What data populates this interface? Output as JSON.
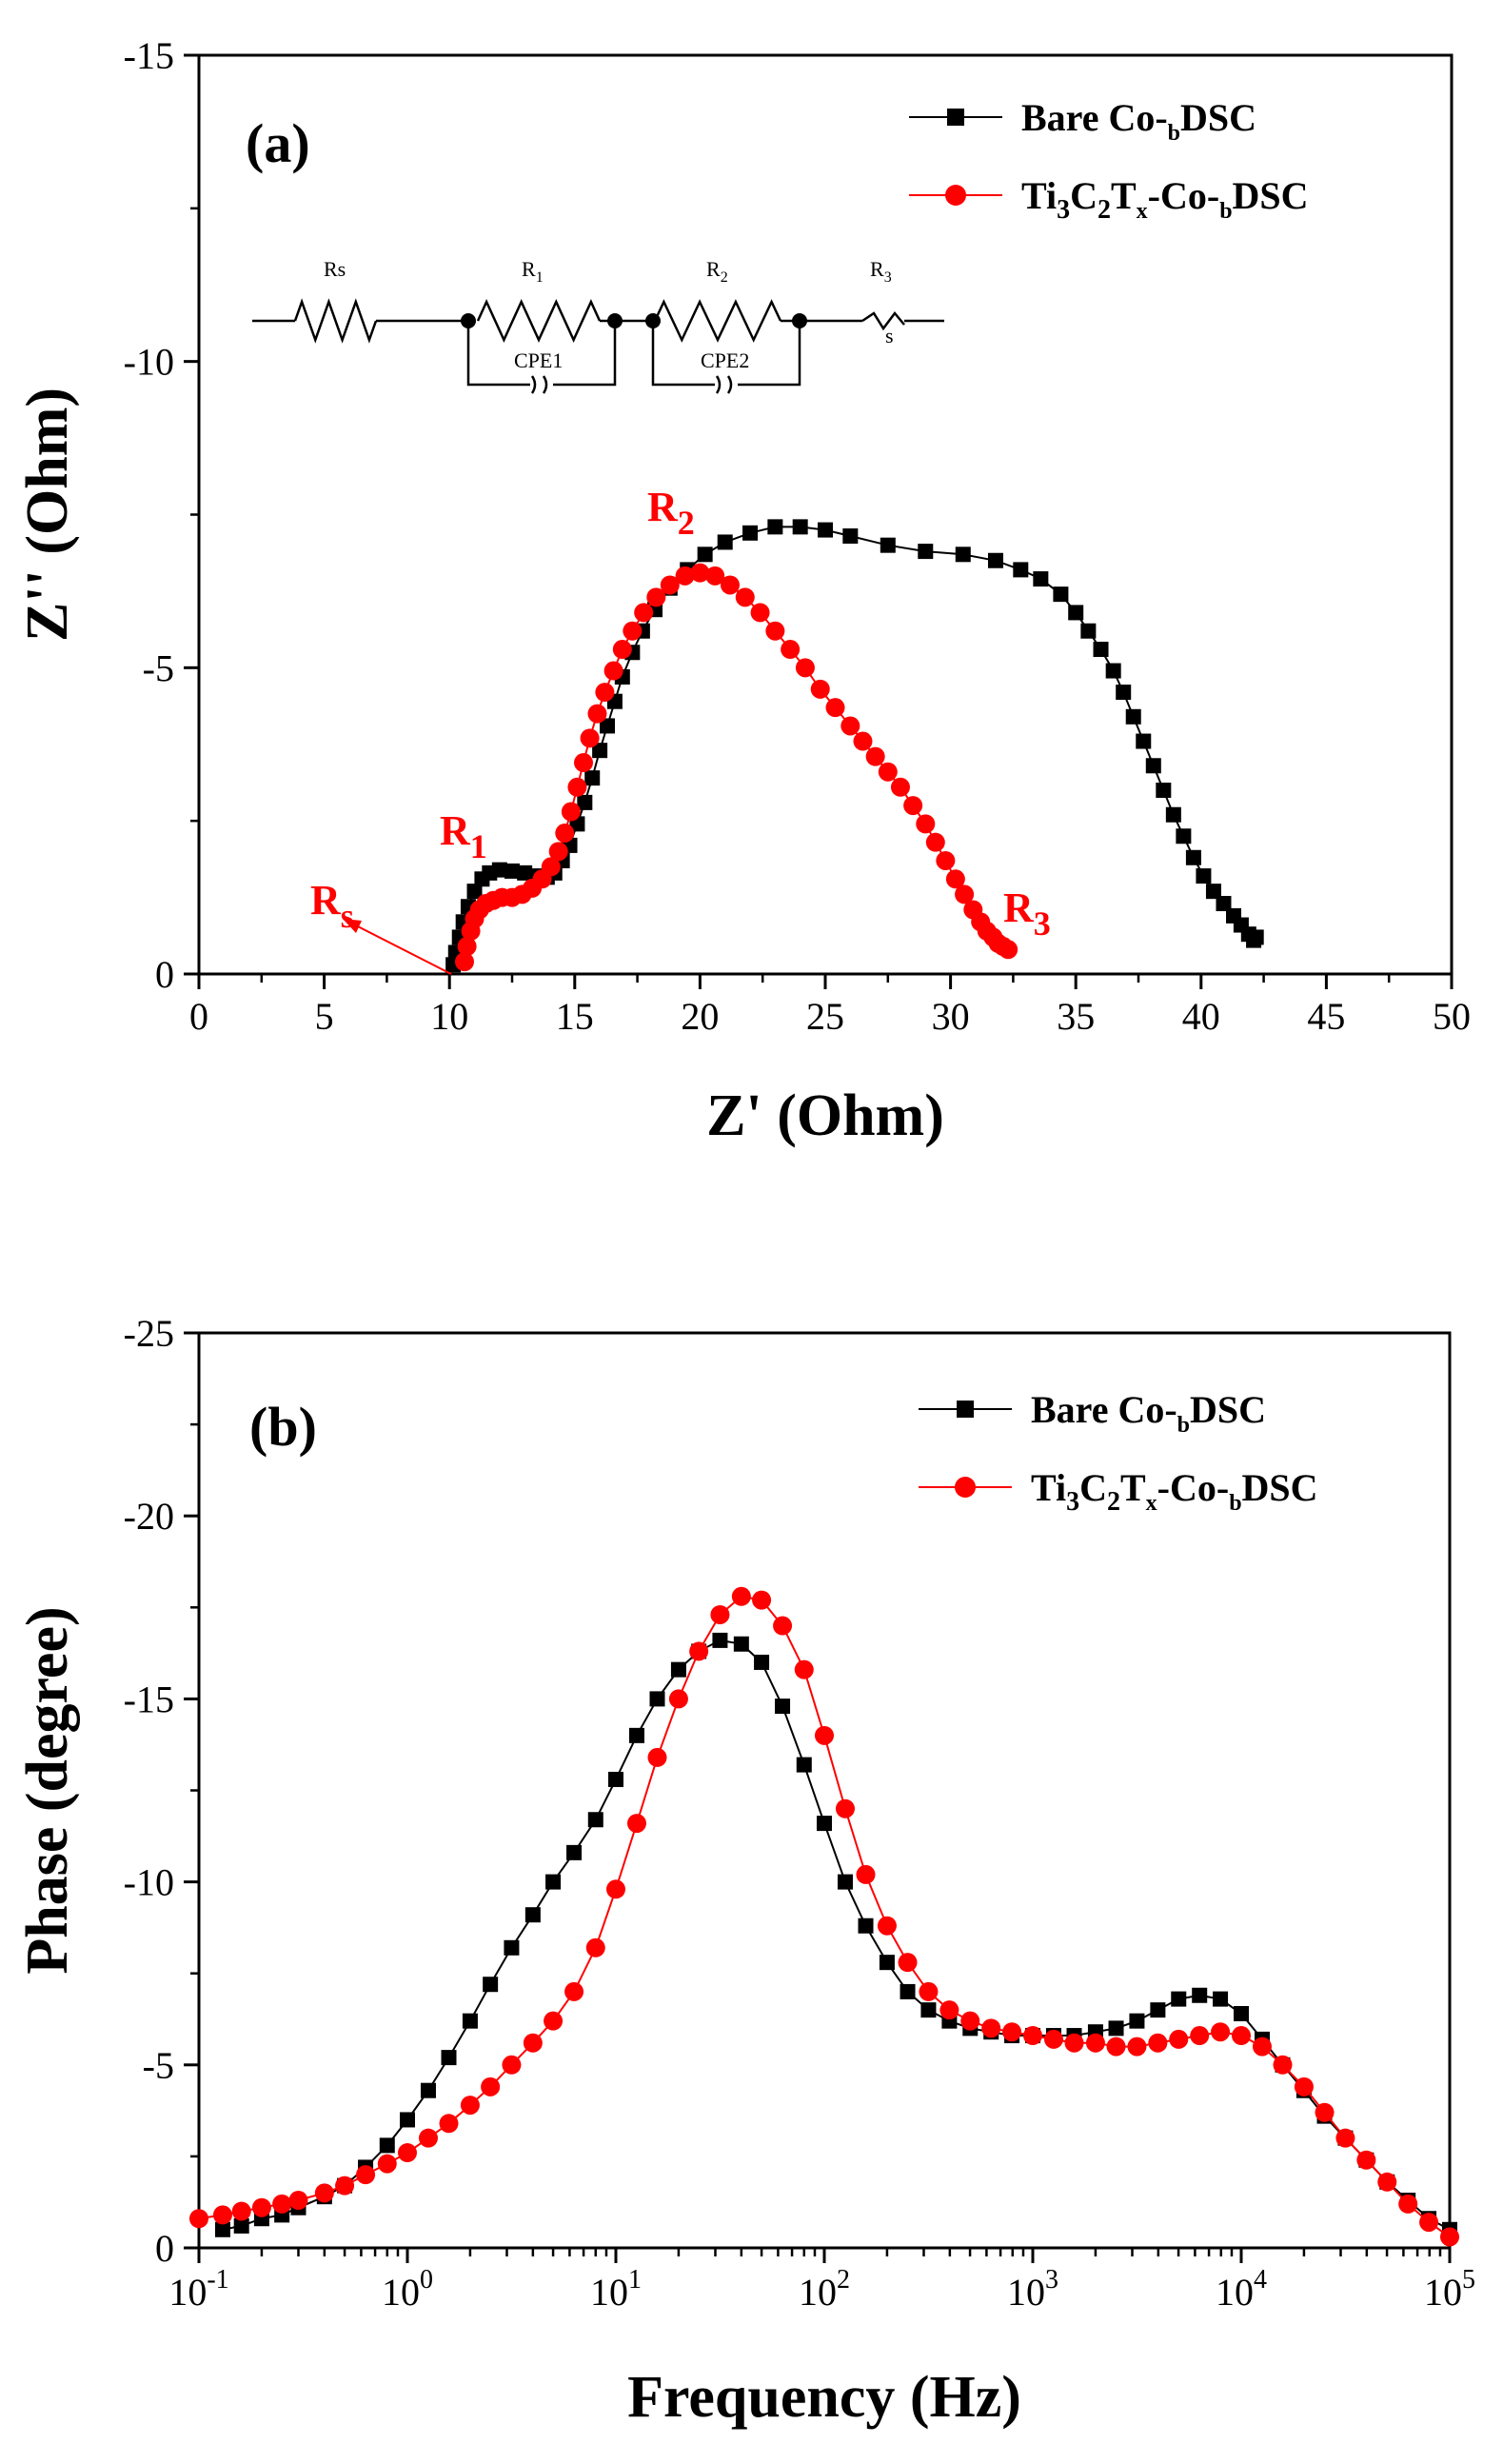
{
  "colors": {
    "bare": "#000000",
    "ti": "#ff0000",
    "axis": "#000000"
  },
  "chart_data": [
    {
      "type": "scatter",
      "panel_label": "(a)",
      "xlabel": "Z' (Ohm)",
      "ylabel": "Z'' (Ohm)",
      "xlim": [
        0,
        50
      ],
      "ylim": [
        0,
        -15
      ],
      "xticks": [
        0,
        5,
        10,
        15,
        20,
        25,
        30,
        35,
        40,
        45,
        50
      ],
      "xtick_labels": [
        "0",
        "5",
        "10",
        "15",
        "20",
        "25",
        "30",
        "35",
        "40",
        "45",
        "50"
      ],
      "yticks": [
        0,
        -5,
        -10,
        -15
      ],
      "ytick_labels": [
        "0",
        "-5",
        "-10",
        "-15"
      ],
      "legend_position": "top-right",
      "legend": [
        {
          "main": "Bare Co-",
          "sub": "b",
          "tail": "DSC"
        },
        {
          "main": "Ti",
          "s1": "3",
          "m2": "C",
          "s2": "2",
          "m3": "T",
          "s3": "x",
          "m4": "-Co-",
          "s4": "b",
          "tail": "DSC"
        }
      ],
      "annotations": [
        {
          "main": "R",
          "sub": "1",
          "x": 11.2,
          "y": -2.0
        },
        {
          "main": "R",
          "sub": "2",
          "x": 19.0,
          "y": -7.5
        },
        {
          "main": "R",
          "sub": "3",
          "x": 32.6,
          "y": -1.05
        },
        {
          "main": "R",
          "sub": "s",
          "x": 4.6,
          "y": -1.05
        }
      ],
      "circuit": {
        "labels": [
          "Rs",
          "R1",
          "R2",
          "R3",
          "CPE1",
          "CPE2",
          "s"
        ]
      },
      "series": [
        {
          "name": "Bare Co-bDSC",
          "x": [
            10.15,
            10.25,
            10.4,
            10.55,
            10.75,
            11.0,
            11.3,
            11.6,
            12.0,
            12.5,
            13.0,
            13.5,
            13.9,
            14.2,
            14.5,
            14.8,
            15.1,
            15.4,
            15.7,
            16.0,
            16.3,
            16.6,
            16.9,
            17.3,
            17.7,
            18.2,
            18.8,
            19.5,
            20.2,
            21.0,
            22.0,
            23.0,
            24.0,
            25.0,
            26.0,
            27.5,
            29.0,
            30.5,
            31.8,
            32.8,
            33.6,
            34.4,
            35.0,
            35.5,
            36.0,
            36.5,
            36.9,
            37.3,
            37.7,
            38.1,
            38.5,
            38.9,
            39.3,
            39.7,
            40.1,
            40.5,
            40.9,
            41.3,
            41.6,
            41.9,
            42.1,
            42.2
          ],
          "y": [
            -0.15,
            -0.35,
            -0.6,
            -0.85,
            -1.1,
            -1.35,
            -1.55,
            -1.65,
            -1.7,
            -1.68,
            -1.65,
            -1.6,
            -1.58,
            -1.65,
            -1.85,
            -2.1,
            -2.45,
            -2.8,
            -3.2,
            -3.65,
            -4.05,
            -4.45,
            -4.85,
            -5.25,
            -5.6,
            -5.95,
            -6.3,
            -6.6,
            -6.85,
            -7.05,
            -7.2,
            -7.3,
            -7.3,
            -7.25,
            -7.15,
            -7.0,
            -6.9,
            -6.85,
            -6.75,
            -6.6,
            -6.45,
            -6.2,
            -5.9,
            -5.6,
            -5.3,
            -4.95,
            -4.6,
            -4.2,
            -3.8,
            -3.4,
            -3.0,
            -2.6,
            -2.25,
            -1.9,
            -1.6,
            -1.35,
            -1.15,
            -0.95,
            -0.8,
            -0.65,
            -0.55,
            -0.6
          ]
        },
        {
          "name": "Ti3C2Tx-Co-bDSC",
          "x": [
            10.6,
            10.7,
            10.85,
            11.0,
            11.2,
            11.45,
            11.75,
            12.1,
            12.5,
            12.9,
            13.3,
            13.7,
            14.05,
            14.35,
            14.6,
            14.85,
            15.1,
            15.35,
            15.6,
            15.9,
            16.2,
            16.55,
            16.9,
            17.3,
            17.75,
            18.25,
            18.8,
            19.4,
            20.0,
            20.6,
            21.2,
            21.8,
            22.4,
            23.0,
            23.6,
            24.2,
            24.8,
            25.4,
            26.0,
            26.5,
            27.0,
            27.5,
            28.0,
            28.5,
            29.0,
            29.4,
            29.8,
            30.2,
            30.55,
            30.9,
            31.2,
            31.45,
            31.7,
            31.9,
            32.1,
            32.3
          ],
          "y": [
            -0.2,
            -0.45,
            -0.7,
            -0.9,
            -1.05,
            -1.15,
            -1.2,
            -1.25,
            -1.25,
            -1.3,
            -1.4,
            -1.55,
            -1.75,
            -2.0,
            -2.3,
            -2.65,
            -3.05,
            -3.45,
            -3.85,
            -4.25,
            -4.6,
            -4.95,
            -5.3,
            -5.6,
            -5.9,
            -6.15,
            -6.35,
            -6.5,
            -6.55,
            -6.5,
            -6.35,
            -6.15,
            -5.9,
            -5.6,
            -5.3,
            -5.0,
            -4.65,
            -4.35,
            -4.05,
            -3.8,
            -3.55,
            -3.3,
            -3.05,
            -2.75,
            -2.45,
            -2.15,
            -1.85,
            -1.55,
            -1.3,
            -1.05,
            -0.85,
            -0.7,
            -0.6,
            -0.5,
            -0.45,
            -0.4
          ]
        }
      ]
    },
    {
      "type": "scatter",
      "panel_label": "(b)",
      "xlabel": "Frequency (Hz)",
      "ylabel": "Phase (degree)",
      "xscale": "log",
      "xlim": [
        0.1,
        100000
      ],
      "ylim": [
        0,
        -25
      ],
      "xtick_labels": [
        {
          "base": "10",
          "exp": "-1"
        },
        {
          "base": "10",
          "exp": "0"
        },
        {
          "base": "10",
          "exp": "1"
        },
        {
          "base": "10",
          "exp": "2"
        },
        {
          "base": "10",
          "exp": "3"
        },
        {
          "base": "10",
          "exp": "4"
        },
        {
          "base": "10",
          "exp": "5"
        }
      ],
      "yticks": [
        0,
        -5,
        -10,
        -15,
        -20,
        -25
      ],
      "ytick_labels": [
        "0",
        "-5",
        "-10",
        "-15",
        "-20",
        "-25"
      ],
      "legend_position": "top-right",
      "legend": [
        {
          "main": "Bare Co-",
          "sub": "b",
          "tail": "DSC"
        },
        {
          "main": "Ti",
          "s1": "3",
          "m2": "C",
          "s2": "2",
          "m3": "T",
          "s3": "x",
          "m4": "-Co-",
          "s4": "b",
          "tail": "DSC"
        }
      ],
      "series": [
        {
          "name": "Bare Co-bDSC",
          "x": [
            0.13,
            0.16,
            0.2,
            0.25,
            0.3,
            0.4,
            0.5,
            0.63,
            0.8,
            1.0,
            1.26,
            1.58,
            2.0,
            2.5,
            3.16,
            4.0,
            5.0,
            6.3,
            8.0,
            10,
            12.6,
            15.8,
            20,
            25,
            31.6,
            40,
            50,
            63,
            80,
            100,
            126,
            158,
            200,
            251,
            316,
            398,
            501,
            631,
            794,
            1000,
            1260,
            1580,
            2000,
            2510,
            3160,
            3980,
            5010,
            6310,
            7940,
            10000,
            12600,
            15800,
            20000,
            25100,
            31600,
            39800,
            50100,
            63100,
            79400,
            100000
          ],
          "y": [
            -0.5,
            -0.6,
            -0.8,
            -0.9,
            -1.1,
            -1.4,
            -1.7,
            -2.2,
            -2.8,
            -3.5,
            -4.3,
            -5.2,
            -6.2,
            -7.2,
            -8.2,
            -9.1,
            -10.0,
            -10.8,
            -11.7,
            -12.8,
            -14.0,
            -15.0,
            -15.8,
            -16.3,
            -16.6,
            -16.5,
            -16.0,
            -14.8,
            -13.2,
            -11.6,
            -10.0,
            -8.8,
            -7.8,
            -7.0,
            -6.5,
            -6.2,
            -6.0,
            -5.9,
            -5.8,
            -5.8,
            -5.8,
            -5.8,
            -5.9,
            -6.0,
            -6.2,
            -6.5,
            -6.8,
            -6.9,
            -6.8,
            -6.4,
            -5.7,
            -5.0,
            -4.3,
            -3.6,
            -3.0,
            -2.4,
            -1.8,
            -1.3,
            -0.8,
            -0.5
          ]
        },
        {
          "name": "Ti3C2Tx-Co-bDSC",
          "x": [
            0.1,
            0.13,
            0.16,
            0.2,
            0.25,
            0.3,
            0.4,
            0.5,
            0.63,
            0.8,
            1.0,
            1.26,
            1.58,
            2.0,
            2.5,
            3.16,
            4.0,
            5.0,
            6.3,
            8.0,
            10,
            12.6,
            15.8,
            20,
            25,
            31.6,
            40,
            50,
            63,
            80,
            100,
            126,
            158,
            200,
            251,
            316,
            398,
            501,
            631,
            794,
            1000,
            1260,
            1580,
            2000,
            2510,
            3160,
            3980,
            5010,
            6310,
            7940,
            10000,
            12600,
            15800,
            20000,
            25100,
            31600,
            39800,
            50100,
            63100,
            79400,
            100000
          ],
          "y": [
            -0.8,
            -0.9,
            -1.0,
            -1.1,
            -1.2,
            -1.3,
            -1.5,
            -1.7,
            -2.0,
            -2.3,
            -2.6,
            -3.0,
            -3.4,
            -3.9,
            -4.4,
            -5.0,
            -5.6,
            -6.2,
            -7.0,
            -8.2,
            -9.8,
            -11.6,
            -13.4,
            -15.0,
            -16.3,
            -17.3,
            -17.8,
            -17.7,
            -17.0,
            -15.8,
            -14.0,
            -12.0,
            -10.2,
            -8.8,
            -7.8,
            -7.0,
            -6.5,
            -6.2,
            -6.0,
            -5.9,
            -5.8,
            -5.7,
            -5.6,
            -5.6,
            -5.5,
            -5.5,
            -5.6,
            -5.7,
            -5.8,
            -5.9,
            -5.8,
            -5.5,
            -5.0,
            -4.4,
            -3.7,
            -3.0,
            -2.4,
            -1.8,
            -1.2,
            -0.7,
            -0.3
          ]
        }
      ]
    }
  ]
}
